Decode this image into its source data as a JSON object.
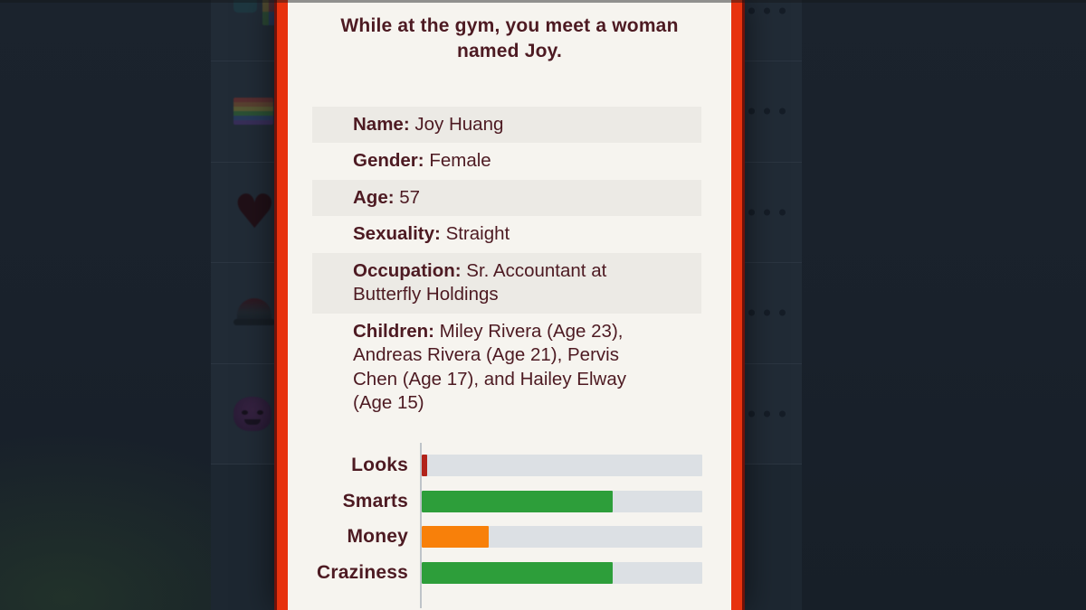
{
  "dialog": {
    "title": "While at the gym, you meet a woman named Joy.",
    "info_rows": [
      {
        "label": "Name:",
        "value": "Joy Huang"
      },
      {
        "label": "Gender:",
        "value": "Female"
      },
      {
        "label": "Age:",
        "value": "57"
      },
      {
        "label": "Sexuality:",
        "value": "Straight"
      },
      {
        "label": "Occupation:",
        "value": "Sr. Accountant at Butterfly Holdings"
      },
      {
        "label": "Children:",
        "value": "Miley Rivera (Age 23), Andreas Rivera (Age 21), Pervis Chen (Age 17), and Hailey Elway (Age 15)"
      }
    ]
  },
  "chart_data": {
    "type": "bar",
    "orientation": "horizontal",
    "categories": [
      "Looks",
      "Smarts",
      "Money",
      "Craziness"
    ],
    "values": [
      2,
      68,
      24,
      68
    ],
    "bar_colors": [
      "#b2231a",
      "#2d9e3a",
      "#f8800a",
      "#2d9e3a"
    ],
    "xlim": [
      0,
      100
    ],
    "track_color": "#dce0e4",
    "title": "",
    "xlabel": "",
    "ylabel": ""
  },
  "background": {
    "rows": [
      {
        "icon": "game-controller-icon"
      },
      {
        "icon": "rainbow-flag-icon"
      },
      {
        "icon": "heart-icon"
      },
      {
        "icon": "cap-icon"
      },
      {
        "icon": "devil-face-icon"
      }
    ],
    "heart_glyph": "♥"
  },
  "colors": {
    "modal_background": "#f6f4ef",
    "modal_border": "#e7320e",
    "text_maroon": "#4d1a22",
    "shaded_row": "#eceae5",
    "screen_dim": "#212b36"
  }
}
